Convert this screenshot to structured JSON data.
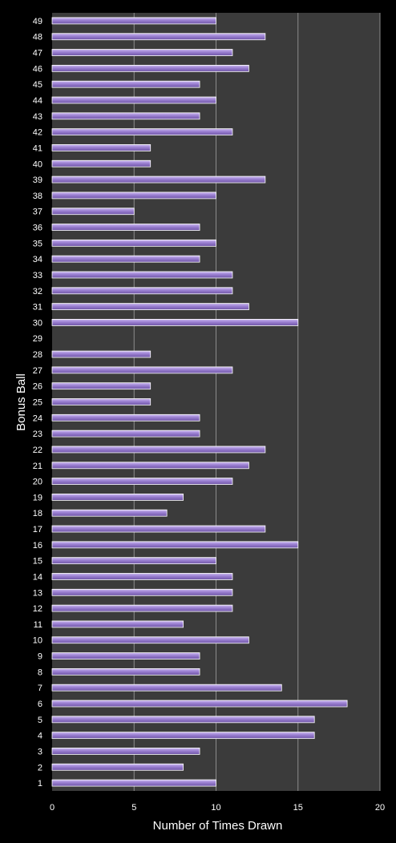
{
  "chart_data": {
    "type": "bar",
    "orientation": "horizontal",
    "title": "",
    "xlabel": "Number of Times Drawn",
    "ylabel": "Bonus Ball",
    "xlim": [
      0,
      20
    ],
    "x_ticks": [
      0,
      5,
      10,
      15,
      20
    ],
    "grid": true,
    "legend": "none",
    "colors": {
      "background": "#000000",
      "plot_area": "#3b3b3b",
      "bar_fill": "#9a7fd1",
      "bar_edge": "#ffffff",
      "grid": "#8c8c8c",
      "text": "#ffffff"
    },
    "categories": [
      "1",
      "2",
      "3",
      "4",
      "5",
      "6",
      "7",
      "8",
      "9",
      "10",
      "11",
      "12",
      "13",
      "14",
      "15",
      "16",
      "17",
      "18",
      "19",
      "20",
      "21",
      "22",
      "23",
      "24",
      "25",
      "26",
      "27",
      "28",
      "29",
      "30",
      "31",
      "32",
      "33",
      "34",
      "35",
      "36",
      "37",
      "38",
      "39",
      "40",
      "41",
      "42",
      "43",
      "44",
      "45",
      "46",
      "47",
      "48",
      "49"
    ],
    "values": [
      10,
      8,
      9,
      16,
      16,
      18,
      14,
      9,
      9,
      12,
      8,
      11,
      11,
      11,
      10,
      15,
      13,
      7,
      8,
      11,
      12,
      13,
      9,
      9,
      6,
      6,
      11,
      6,
      0,
      15,
      12,
      11,
      11,
      9,
      10,
      9,
      5,
      10,
      13,
      6,
      6,
      11,
      9,
      10,
      9,
      12,
      11,
      13,
      10
    ]
  }
}
